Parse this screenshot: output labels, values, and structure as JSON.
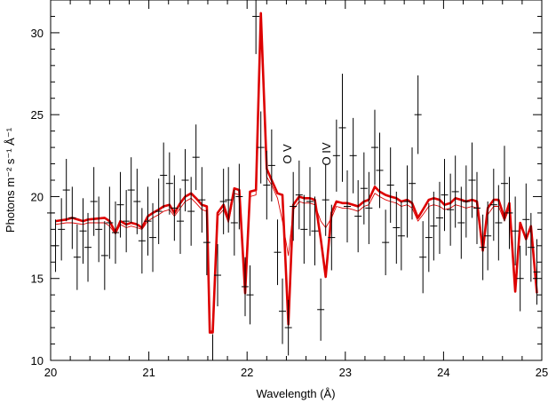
{
  "chart_data": {
    "type": "line",
    "title": "",
    "xlabel": "Wavelength (Å)",
    "ylabel": "Photons m⁻² s⁻¹ Å⁻¹",
    "xlim": [
      20,
      25
    ],
    "ylim": [
      10,
      32
    ],
    "x_ticks": [
      "20",
      "21",
      "22",
      "23",
      "24",
      "25"
    ],
    "y_ticks": [
      "10",
      "15",
      "20",
      "25",
      "30"
    ],
    "grid": false,
    "legend": "none",
    "annotations": [
      {
        "text": "O V",
        "x": 22.45,
        "y": 22.6,
        "rotation": -90
      },
      {
        "text": "O IV",
        "x": 22.85,
        "y": 22.6,
        "rotation": -90
      }
    ],
    "data_points": {
      "name": "observed",
      "color": "#000000",
      "x": [
        20.0,
        20.05,
        20.11,
        20.16,
        20.22,
        20.27,
        20.33,
        20.38,
        20.44,
        20.49,
        20.55,
        20.6,
        20.66,
        20.71,
        20.77,
        20.82,
        20.88,
        20.93,
        20.99,
        21.04,
        21.1,
        21.15,
        21.21,
        21.26,
        21.32,
        21.37,
        21.43,
        21.48,
        21.54,
        21.59,
        21.65,
        21.7,
        21.76,
        21.81,
        21.87,
        21.92,
        21.98,
        22.03,
        22.09,
        22.14,
        22.2,
        22.25,
        22.31,
        22.36,
        22.42,
        22.47,
        22.53,
        22.58,
        22.64,
        22.69,
        22.75,
        22.8,
        22.86,
        22.91,
        22.97,
        23.02,
        23.08,
        23.13,
        23.19,
        23.24,
        23.3,
        23.35,
        23.41,
        23.46,
        23.52,
        23.57,
        23.63,
        23.68,
        23.74,
        23.79,
        23.85,
        23.9,
        23.96,
        24.01,
        24.07,
        24.12,
        24.18,
        24.23,
        24.29,
        24.34,
        24.4,
        24.45,
        24.51,
        24.56,
        24.62,
        24.67,
        24.73,
        24.78,
        24.84,
        24.89,
        24.95
      ],
      "y": [
        19.0,
        17.0,
        18.0,
        20.4,
        18.7,
        16.3,
        17.9,
        16.9,
        19.7,
        18.0,
        16.4,
        18.4,
        17.8,
        19.5,
        18.5,
        20.4,
        19.7,
        17.3,
        18.5,
        17.5,
        19.1,
        21.3,
        20.8,
        19.3,
        18.5,
        21.0,
        19.1,
        22.4,
        19.8,
        17.2,
        10.0,
        15.2,
        19.7,
        19.8,
        18.4,
        20.0,
        14.5,
        14.0,
        31.0,
        23.0,
        20.7,
        21.9,
        16.6,
        13.0,
        12.0,
        19.4,
        20.1,
        18.0,
        19.7,
        17.9,
        13.1,
        19.8,
        17.5,
        22.5,
        24.2,
        19.4,
        22.5,
        18.8,
        20.5,
        19.3,
        23.0,
        21.6,
        17.2,
        20.7,
        18.1,
        17.6,
        19.7,
        20.8,
        25.0,
        16.3,
        17.5,
        18.2,
        18.7,
        20.1,
        19.2,
        20.3,
        18.4,
        19.7,
        21.0,
        19.3,
        16.9,
        17.6,
        19.5,
        18.4,
        20.8,
        19.0,
        17.9,
        15.0,
        18.6,
        16.9,
        15.4
      ],
      "y_err": [
        1.8,
        1.6,
        1.9,
        1.9,
        1.9,
        2.0,
        2.0,
        2.1,
        2.1,
        2.0,
        2.1,
        2.2,
        1.9,
        2.0,
        1.9,
        2.0,
        2.0,
        2.0,
        2.1,
        2.1,
        2.0,
        2.0,
        1.9,
        2.0,
        2.0,
        1.9,
        2.1,
        2.0,
        2.0,
        2.0,
        1.6,
        1.9,
        2.0,
        2.0,
        2.0,
        2.0,
        1.8,
        1.8,
        2.3,
        2.2,
        2.1,
        2.2,
        2.0,
        2.0,
        1.7,
        2.1,
        2.1,
        2.1,
        2.1,
        2.1,
        1.9,
        2.2,
        2.0,
        2.2,
        3.3,
        2.2,
        2.3,
        2.2,
        2.2,
        2.2,
        2.3,
        2.3,
        2.0,
        2.3,
        2.2,
        2.1,
        2.2,
        2.2,
        2.4,
        2.2,
        2.1,
        2.1,
        2.2,
        2.2,
        2.2,
        2.2,
        2.2,
        2.2,
        2.3,
        2.2,
        2.0,
        2.1,
        2.2,
        2.3,
        2.3,
        2.2,
        2.1,
        2.0,
        2.2,
        2.1,
        2.0
      ]
    },
    "series": [
      {
        "name": "model-thick",
        "color": "#dd0000",
        "x": [
          20.05,
          20.16,
          20.22,
          20.33,
          20.38,
          20.55,
          20.6,
          20.66,
          20.71,
          20.77,
          20.82,
          20.88,
          20.93,
          20.99,
          21.04,
          21.1,
          21.15,
          21.21,
          21.26,
          21.32,
          21.37,
          21.43,
          21.48,
          21.54,
          21.59,
          21.62,
          21.65,
          21.7,
          21.76,
          21.81,
          21.87,
          21.92,
          21.98,
          22.03,
          22.09,
          22.14,
          22.2,
          22.25,
          22.31,
          22.36,
          22.42,
          22.47,
          22.53,
          22.58,
          22.64,
          22.69,
          22.75,
          22.8,
          22.86,
          22.91,
          22.97,
          23.02,
          23.08,
          23.13,
          23.19,
          23.24,
          23.3,
          23.35,
          23.41,
          23.46,
          23.52,
          23.57,
          23.63,
          23.68,
          23.74,
          23.79,
          23.85,
          23.9,
          23.96,
          24.01,
          24.07,
          24.12,
          24.18,
          24.23,
          24.29,
          24.34,
          24.4,
          24.45,
          24.51,
          24.56,
          24.62,
          24.67,
          24.73,
          24.78,
          24.84,
          24.89,
          24.95
        ],
        "y": [
          18.5,
          18.6,
          18.7,
          18.5,
          18.6,
          18.7,
          18.5,
          17.8,
          18.5,
          18.3,
          18.4,
          18.3,
          18.1,
          18.8,
          19.0,
          19.2,
          19.4,
          19.5,
          19.0,
          19.6,
          20.0,
          20.2,
          19.9,
          19.5,
          19.4,
          11.7,
          11.7,
          19.0,
          19.5,
          18.6,
          20.5,
          20.4,
          14.1,
          20.3,
          20.4,
          31.2,
          21.7,
          21.0,
          20.2,
          20.1,
          12.2,
          19.5,
          20.0,
          19.9,
          19.9,
          19.8,
          17.4,
          15.1,
          19.0,
          19.7,
          19.6,
          19.6,
          19.5,
          19.4,
          19.7,
          19.8,
          20.6,
          20.3,
          20.1,
          20.0,
          19.9,
          19.7,
          19.8,
          19.6,
          18.7,
          19.2,
          19.8,
          19.9,
          19.8,
          19.5,
          19.6,
          19.9,
          19.8,
          19.7,
          19.8,
          19.7,
          16.7,
          19.3,
          19.8,
          19.8,
          18.7,
          19.6,
          14.2,
          18.4,
          17.4,
          18.2,
          14.1
        ],
        "stroke_width": 2.6
      },
      {
        "name": "model-thin",
        "color": "#dd0000",
        "x": [
          20.05,
          20.16,
          20.22,
          20.33,
          20.38,
          20.55,
          20.6,
          20.66,
          20.71,
          20.77,
          20.82,
          20.88,
          20.93,
          20.99,
          21.04,
          21.1,
          21.15,
          21.21,
          21.26,
          21.32,
          21.37,
          21.43,
          21.48,
          21.54,
          21.59,
          21.62,
          21.65,
          21.7,
          21.76,
          21.81,
          21.87,
          21.92,
          21.98,
          22.03,
          22.09,
          22.14,
          22.2,
          22.25,
          22.31,
          22.36,
          22.42,
          22.47,
          22.53,
          22.58,
          22.64,
          22.69,
          22.75,
          22.8,
          22.86,
          22.91,
          22.97,
          23.02,
          23.08,
          23.13,
          23.19,
          23.24,
          23.3,
          23.35,
          23.41,
          23.46,
          23.52,
          23.57,
          23.63,
          23.68,
          23.74,
          23.79,
          23.85,
          23.9,
          23.96,
          24.01,
          24.07,
          24.12,
          24.18,
          24.23,
          24.29,
          24.34,
          24.4,
          24.45,
          24.51,
          24.56,
          24.62,
          24.67,
          24.73,
          24.78,
          24.84,
          24.89,
          24.95
        ],
        "y": [
          18.3,
          18.4,
          18.4,
          18.3,
          18.4,
          18.4,
          18.2,
          17.7,
          18.3,
          18.1,
          18.2,
          18.1,
          18.0,
          18.5,
          18.7,
          18.9,
          19.1,
          19.2,
          18.8,
          19.3,
          19.7,
          19.9,
          19.6,
          19.2,
          19.1,
          11.8,
          11.8,
          18.8,
          19.2,
          18.4,
          20.2,
          20.1,
          14.2,
          20.0,
          20.1,
          30.8,
          21.2,
          20.7,
          19.9,
          18.5,
          16.4,
          19.2,
          19.7,
          19.6,
          19.6,
          19.5,
          18.5,
          18.1,
          18.7,
          19.4,
          19.3,
          19.3,
          19.2,
          19.1,
          19.4,
          19.5,
          20.2,
          20.0,
          19.8,
          19.7,
          19.6,
          19.4,
          19.5,
          19.3,
          18.5,
          18.9,
          19.4,
          19.5,
          19.4,
          19.2,
          19.3,
          19.5,
          19.4,
          19.3,
          19.4,
          19.3,
          16.9,
          18.9,
          19.4,
          19.4,
          18.5,
          19.3,
          14.6,
          18.2,
          17.5,
          18.0,
          14.6
        ],
        "stroke_width": 0.9
      }
    ]
  }
}
